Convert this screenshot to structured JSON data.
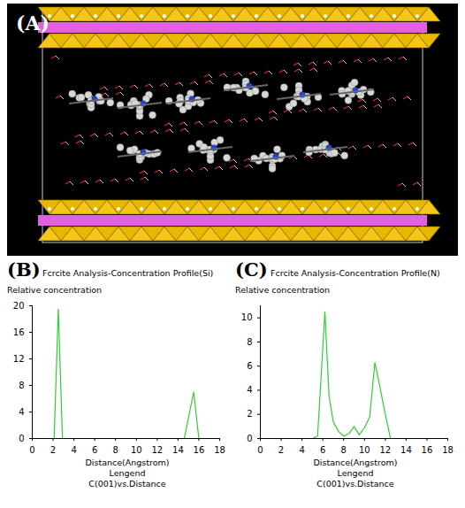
{
  "figure": {
    "panel_a": {
      "label": "(A)"
    }
  },
  "chart_data": [
    {
      "type": "line",
      "panel_label": "(B)",
      "title": "Fcrcite Analysis-Concentration Profile(Si)",
      "y_label": "Relative concentration",
      "x_label": "Distance(Angstrom)",
      "legend_title": "Lengend",
      "legend": "bottom",
      "x": [
        0,
        1,
        2,
        2.1,
        2.5,
        2.9,
        3,
        4,
        6,
        8,
        10,
        12,
        14,
        14.6,
        15.5,
        16,
        17,
        18
      ],
      "series": [
        {
          "name": "C(001)vs.Distance",
          "color": "#33cc33",
          "values": [
            0,
            0,
            0,
            0,
            19.5,
            0,
            0,
            0,
            0,
            0,
            0,
            0,
            0,
            0,
            7,
            0,
            0,
            0
          ]
        }
      ],
      "xlim": [
        0,
        18
      ],
      "xticks": [
        0,
        2,
        4,
        6,
        8,
        10,
        12,
        14,
        16,
        18
      ],
      "ylim": [
        0,
        20
      ],
      "yticks": [
        0,
        4,
        8,
        12,
        16,
        20
      ]
    },
    {
      "type": "line",
      "panel_label": "(C)",
      "title": "Fcrcite Analysis-Concentration Profile(N)",
      "y_label": "Relative concentration",
      "x_label": "Distance(Angstrom)",
      "legend_title": "Lengend",
      "legend": "bottom",
      "x": [
        0,
        2,
        4,
        5,
        5.5,
        6.2,
        6.6,
        7,
        7.5,
        8,
        8.5,
        9,
        9.5,
        10,
        10.5,
        11,
        11.5,
        12,
        12.5,
        14,
        16,
        18
      ],
      "series": [
        {
          "name": "C(001)vs.Distance",
          "color": "#33cc33",
          "values": [
            0,
            0,
            0,
            0,
            0.2,
            10.5,
            3.5,
            1.4,
            0.6,
            0.2,
            0.4,
            1,
            0.3,
            0.9,
            1.8,
            6.3,
            4.2,
            2,
            0,
            0,
            0,
            0
          ]
        }
      ],
      "xlim": [
        0,
        18
      ],
      "xticks": [
        0,
        2,
        4,
        6,
        8,
        10,
        12,
        14,
        16,
        18
      ],
      "ylim": [
        0,
        11
      ],
      "yticks": [
        0,
        2,
        4,
        6,
        8,
        10
      ]
    }
  ]
}
